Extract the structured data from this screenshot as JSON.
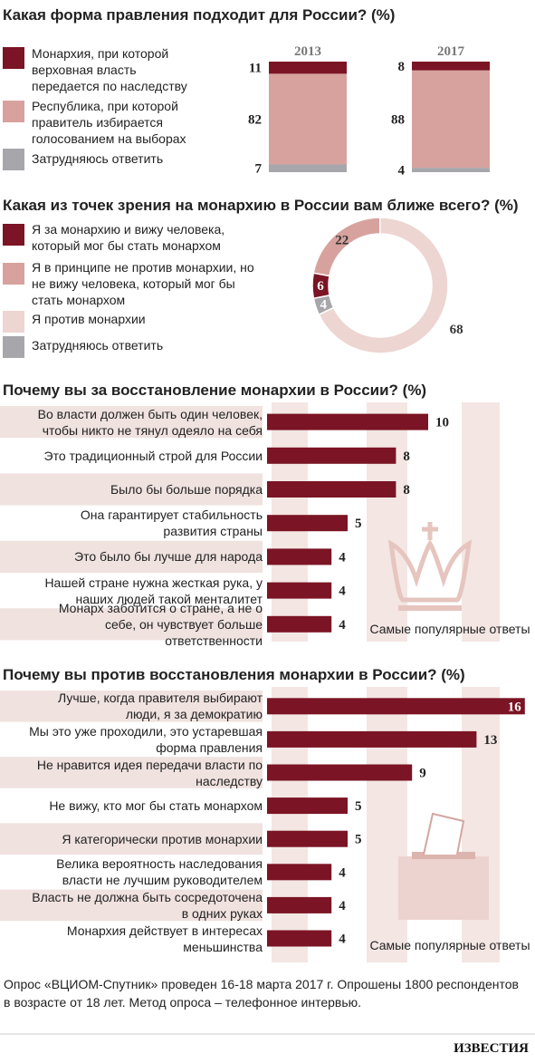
{
  "chart_data": [
    {
      "type": "stacked_column",
      "title": "Какая форма правления подходит для России? (%)",
      "categories": [
        "2013",
        "2017"
      ],
      "series": [
        {
          "name": "Монархия, при которой верховная власть передается по наследству",
          "color": "#7b1424",
          "values": [
            11,
            8
          ]
        },
        {
          "name": "Республика, при которой правитель избирается голосованием на выборах",
          "color": "#d7a29d",
          "values": [
            82,
            88
          ]
        },
        {
          "name": "Затрудняюсь ответить",
          "color": "#a7a7ab",
          "values": [
            7,
            4
          ]
        }
      ]
    },
    {
      "type": "donut",
      "title": "Какая из точек зрения на монархию в России вам ближе всего? (%)",
      "categories": [
        "Я за монархию и вижу человека, который мог бы стать монархом",
        "Я в принципе не против монархии, но не вижу человека, который мог бы стать монархом",
        "Я против монархии",
        "Затрудняюсь ответить"
      ],
      "values": [
        6,
        22,
        68,
        4
      ],
      "colors": [
        "#7b1424",
        "#d7a29d",
        "#edd5d1",
        "#a7a7ab"
      ]
    },
    {
      "type": "hbar",
      "title": "Почему вы за восстановление монархии в России? (%)",
      "categories": [
        "Во власти должен быть один человек, чтобы никто не тянул одеяло на себя",
        "Это традиционный строй для России",
        "Было бы больше порядка",
        "Она гарантирует стабильность развития страны",
        "Это было бы лучше для народа",
        "Нашей стране нужна жесткая рука, у наших людей такой менталитет",
        "Монарх заботится о стране, а не о себе, он чувствует больше ответственности"
      ],
      "values": [
        10,
        8,
        8,
        5,
        4,
        4,
        4
      ],
      "color": "#7b1424",
      "note": "Самые популярные ответы"
    },
    {
      "type": "hbar",
      "title": "Почему вы против восстановления монархии в России? (%)",
      "categories": [
        "Лучше, когда правителя выбирают люди, я за демократию",
        "Мы это уже проходили, это устаревшая форма правления",
        "Не нравится идея передачи власти по наследству",
        "Не вижу, кто мог бы стать монархом",
        "Я категорически против монархии",
        "Велика вероятность наследования власти не лучшим руководителем",
        "Власть не должна быть сосредоточена в одних руках",
        "Монархия действует в интересах меньшинства"
      ],
      "values": [
        16,
        13,
        9,
        5,
        5,
        4,
        4,
        4
      ],
      "color": "#7b1424",
      "note": "Самые популярные ответы"
    }
  ],
  "footer": "Опрос «ВЦИОМ-Спутник» проведен 16-18 марта 2017 г. Опрошены 1800 респондентов в возрасте от 18 лет. Метод опроса – телефонное интервью.",
  "logo": "ИЗВЕСТИЯ"
}
